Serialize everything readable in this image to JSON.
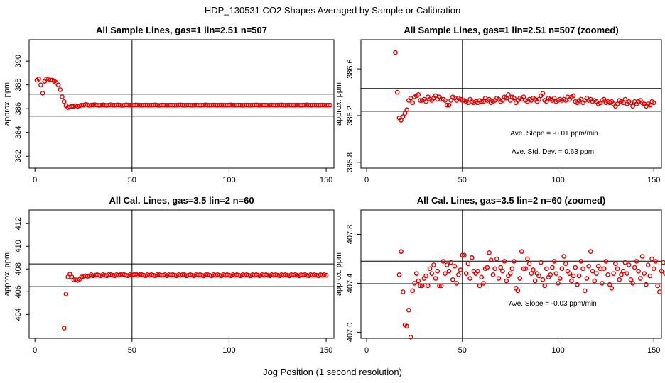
{
  "figure": {
    "title": "HDP_130531  CO2 Shapes Averaged by Sample or Calibration",
    "xlabel": "Jog Position (1 second resolution)"
  },
  "colors": {
    "points": "#e00000",
    "axes": "#000000",
    "background": "#ffffff"
  },
  "chart_data": [
    {
      "type": "scatter",
      "title": "All Sample Lines, gas=1 lin=2.51 n=507",
      "ylabel": "approx. ppm",
      "xlim": [
        -3,
        154
      ],
      "ylim": [
        381.0,
        391.8
      ],
      "xticks": [
        0,
        50,
        100,
        150
      ],
      "yticks": [
        382,
        384,
        386,
        388,
        390
      ],
      "vline": 50,
      "hlines": [
        385.37,
        387.22
      ],
      "annotations": [],
      "x_start": 1,
      "values": [
        388.4,
        388.5,
        388.0,
        387.3,
        388.3,
        388.5,
        388.5,
        388.4,
        388.4,
        388.3,
        388.2,
        388.0,
        387.6,
        387.0,
        386.6,
        386.25,
        386.1,
        386.15,
        386.2,
        386.2,
        386.25,
        386.2,
        386.25,
        386.3,
        386.3,
        386.35,
        386.32,
        386.28,
        386.3,
        386.32,
        386.33,
        386.3,
        386.28,
        386.3,
        386.32,
        386.3,
        386.28,
        386.3,
        386.33,
        386.3,
        386.29,
        386.31,
        386.32,
        386.3,
        386.28,
        386.3,
        386.32,
        386.31,
        386.3,
        386.29,
        386.3,
        386.32,
        386.31,
        386.3,
        386.29,
        386.3,
        386.31,
        386.3,
        386.29,
        386.3,
        386.31,
        386.32,
        386.3,
        386.28,
        386.3,
        386.31,
        386.3,
        386.29,
        386.3,
        386.31,
        386.3,
        386.29,
        386.3,
        386.31,
        386.32,
        386.3,
        386.29,
        386.3,
        386.31,
        386.3,
        386.29,
        386.3,
        386.31,
        386.3,
        386.29,
        386.3,
        386.31,
        386.32,
        386.3,
        386.29,
        386.3,
        386.31,
        386.3,
        386.29,
        386.3,
        386.31,
        386.3,
        386.29,
        386.3,
        386.31,
        386.32,
        386.3,
        386.29,
        386.3,
        386.31,
        386.3,
        386.29,
        386.3,
        386.31,
        386.3,
        386.29,
        386.3,
        386.31,
        386.32,
        386.3,
        386.29,
        386.3,
        386.31,
        386.3,
        386.29,
        386.3,
        386.31,
        386.3,
        386.29,
        386.3,
        386.31,
        386.32,
        386.3,
        386.29,
        386.3,
        386.31,
        386.3,
        386.29,
        386.3,
        386.31,
        386.3,
        386.29,
        386.3,
        386.31,
        386.32,
        386.3,
        386.29,
        386.3,
        386.31,
        386.3,
        386.29,
        386.3,
        386.31,
        386.3,
        386.29,
        386.3,
        386.3
      ]
    },
    {
      "type": "scatter",
      "title": "All Sample Lines, gas=1 lin=2.51 n=507 (zoomed)",
      "ylabel": "approx. ppm",
      "xlim": [
        -3,
        154
      ],
      "ylim": [
        385.75,
        386.85
      ],
      "xticks": [
        0,
        50,
        100,
        150
      ],
      "yticks": [
        385.8,
        386.2,
        386.6
      ],
      "vline": 50,
      "hlines": [
        386.237,
        386.432
      ],
      "annotations": [
        "Ave. Slope =  -0.01  ppm/min",
        "Ave. Std. Dev. =  0.63  ppm"
      ],
      "x_start": 15,
      "values": [
        386.74,
        386.4,
        386.18,
        386.16,
        386.19,
        386.22,
        386.25,
        386.33,
        386.35,
        386.31,
        386.36,
        386.37,
        386.38,
        386.33,
        386.33,
        386.34,
        386.32,
        386.36,
        386.34,
        386.33,
        386.35,
        386.37,
        386.34,
        386.36,
        386.34,
        386.34,
        386.33,
        386.29,
        386.29,
        386.33,
        386.36,
        386.35,
        386.33,
        386.35,
        386.34,
        386.33,
        386.33,
        386.32,
        386.31,
        386.34,
        386.32,
        386.31,
        386.32,
        386.31,
        386.33,
        386.32,
        386.32,
        386.35,
        386.33,
        386.34,
        386.31,
        386.32,
        386.33,
        386.35,
        386.34,
        386.32,
        386.33,
        386.36,
        386.35,
        386.38,
        386.33,
        386.36,
        386.35,
        386.31,
        386.33,
        386.35,
        386.34,
        386.36,
        386.33,
        386.32,
        386.34,
        386.33,
        386.35,
        386.34,
        386.32,
        386.34,
        386.37,
        386.39,
        386.33,
        386.32,
        386.35,
        386.34,
        386.33,
        386.35,
        386.32,
        386.33,
        386.34,
        386.33,
        386.34,
        386.33,
        386.36,
        386.34,
        386.36,
        386.37,
        386.32,
        386.31,
        386.33,
        386.34,
        386.31,
        386.33,
        386.35,
        386.33,
        386.34,
        386.32,
        386.33,
        386.32,
        386.3,
        386.31,
        386.33,
        386.34,
        386.31,
        386.32,
        386.31,
        386.32,
        386.3,
        386.28,
        386.3,
        386.33,
        386.32,
        386.31,
        386.34,
        386.3,
        386.32,
        386.31,
        386.28,
        386.32,
        386.3,
        386.32,
        386.33,
        386.31,
        386.3,
        386.28,
        386.3,
        386.29,
        386.32,
        386.31
      ]
    },
    {
      "type": "scatter",
      "title": "All Cal. Lines, gas=3.5 lin=2 n=60",
      "ylabel": "approx. ppm",
      "xlim": [
        -3,
        154
      ],
      "ylim": [
        401.9,
        413.2
      ],
      "xticks": [
        0,
        50,
        100,
        150
      ],
      "yticks": [
        404,
        406,
        408,
        410,
        412
      ],
      "vline": 50,
      "hlines": [
        406.45,
        408.45
      ],
      "annotations": [],
      "x_start": 15,
      "values": [
        402.8,
        405.8,
        407.3,
        407.55,
        407.3,
        407.05,
        407.05,
        407.0,
        407.1,
        407.3,
        407.35,
        407.4,
        407.35,
        407.4,
        407.5,
        407.4,
        407.45,
        407.5,
        407.45,
        407.4,
        407.5,
        407.45,
        407.4,
        407.5,
        407.5,
        407.45,
        407.4,
        407.5,
        407.45,
        407.5,
        407.55,
        407.5,
        407.45,
        407.4,
        407.5,
        407.45,
        407.5,
        407.55,
        407.45,
        407.5,
        407.5,
        407.45,
        407.4,
        407.5,
        407.45,
        407.5,
        407.45,
        407.4,
        407.5,
        407.5,
        407.45,
        407.45,
        407.5,
        407.4,
        407.5,
        407.45,
        407.5,
        407.45,
        407.4,
        407.5,
        407.45,
        407.5,
        407.5,
        407.4,
        407.45,
        407.5,
        407.45,
        407.4,
        407.5,
        407.45,
        407.5,
        407.45,
        407.4,
        407.5,
        407.5,
        407.45,
        407.4,
        407.5,
        407.45,
        407.5,
        407.45,
        407.4,
        407.5,
        407.45,
        407.5,
        407.45,
        407.4,
        407.5,
        407.45,
        407.5,
        407.45,
        407.4,
        407.5,
        407.45,
        407.5,
        407.45,
        407.4,
        407.5,
        407.45,
        407.5,
        407.45,
        407.4,
        407.5,
        407.45,
        407.5,
        407.45,
        407.4,
        407.5,
        407.45,
        407.5,
        407.45,
        407.4,
        407.5,
        407.45,
        407.5,
        407.45,
        407.4,
        407.5,
        407.45,
        407.5,
        407.45,
        407.4,
        407.5,
        407.45,
        407.5,
        407.45,
        407.4,
        407.5,
        407.45,
        407.5,
        407.45,
        407.4,
        407.5,
        407.45,
        407.5,
        407.45
      ]
    },
    {
      "type": "scatter",
      "title": "All Cal. Lines, gas=3.5 lin=2 n=60 (zoomed)",
      "ylabel": "approx. ppm",
      "xlim": [
        -3,
        154
      ],
      "ylim": [
        406.95,
        408.0
      ],
      "xticks": [
        0,
        50,
        100,
        150
      ],
      "yticks": [
        407.0,
        407.4,
        407.8
      ],
      "vline": 50,
      "hlines": [
        407.397,
        407.581
      ],
      "annotations": [
        "Ave. Slope =  -0.03  ppm/min"
      ],
      "x_start": 17,
      "values": [
        407.47,
        407.66,
        407.33,
        407.06,
        407.05,
        407.18,
        406.96,
        407.34,
        407.4,
        407.48,
        407.42,
        407.38,
        407.38,
        407.44,
        407.46,
        407.38,
        407.52,
        407.48,
        407.55,
        407.44,
        407.5,
        407.38,
        407.38,
        407.58,
        407.48,
        407.55,
        407.5,
        407.57,
        407.43,
        407.54,
        407.4,
        407.47,
        407.51,
        407.63,
        407.63,
        407.48,
        407.56,
        407.44,
        407.61,
        407.5,
        407.48,
        407.5,
        407.38,
        407.45,
        407.4,
        407.52,
        407.53,
        407.65,
        407.59,
        407.47,
        407.52,
        407.6,
        407.44,
        407.53,
        407.5,
        407.58,
        407.42,
        407.46,
        407.48,
        407.52,
        407.58,
        407.36,
        407.34,
        407.44,
        407.66,
        407.52,
        407.52,
        407.6,
        407.56,
        407.48,
        407.51,
        407.42,
        407.48,
        407.46,
        407.57,
        407.43,
        407.38,
        407.52,
        407.45,
        407.47,
        407.53,
        407.58,
        407.48,
        407.4,
        407.44,
        407.52,
        407.62,
        407.56,
        407.5,
        407.48,
        407.42,
        407.46,
        407.53,
        407.39,
        407.46,
        407.58,
        407.52,
        407.34,
        407.44,
        407.54,
        407.66,
        407.5,
        407.42,
        407.48,
        407.54,
        407.52,
        407.4,
        407.52,
        407.58,
        407.47,
        407.39,
        407.36,
        407.48,
        407.56,
        407.52,
        407.43,
        407.47,
        407.5,
        407.57,
        407.48,
        407.55,
        407.43,
        407.4,
        407.53,
        407.58,
        407.5,
        407.44,
        407.62,
        407.48,
        407.39,
        407.55,
        407.46,
        407.6,
        407.52,
        407.58,
        407.38,
        407.33,
        407.5,
        407.57,
        407.48,
        407.48,
        407.45
      ]
    }
  ]
}
